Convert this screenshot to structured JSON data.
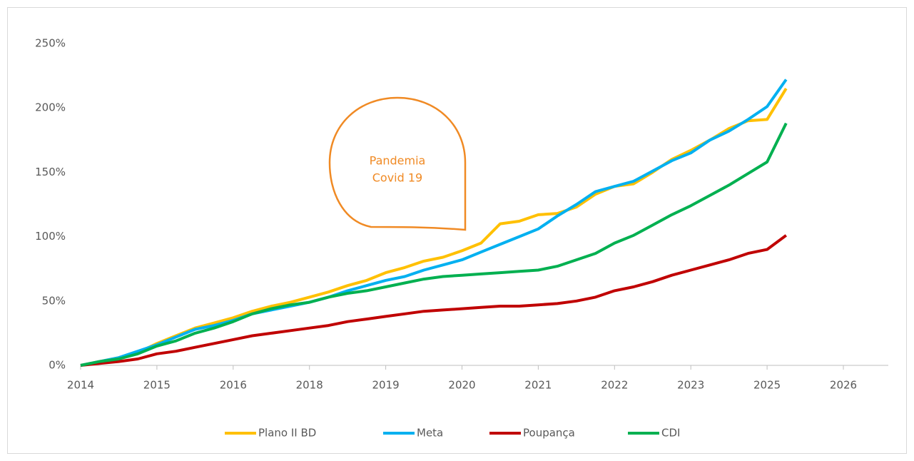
{
  "chart_data": {
    "type": "line",
    "categories": [
      "2014",
      null,
      null,
      null,
      "2015",
      null,
      null,
      null,
      "2016",
      null,
      null,
      null,
      "2018",
      null,
      null,
      null,
      "2019",
      null,
      null,
      null,
      "2020",
      null,
      null,
      null,
      "2021",
      null,
      null,
      null,
      "2022",
      null,
      null,
      null,
      "2023",
      null,
      null,
      null,
      "2025",
      null,
      null,
      null,
      "2026"
    ],
    "series": [
      {
        "name": "Plano II BD",
        "color": "#ffc000",
        "values": [
          0,
          3,
          6,
          10,
          17,
          23,
          29,
          33,
          37,
          42,
          46,
          49,
          53,
          57,
          62,
          66,
          72,
          76,
          81,
          84,
          89,
          95,
          110,
          112,
          117,
          118,
          123,
          133,
          139,
          141,
          150,
          160,
          167,
          175,
          184,
          190,
          191,
          215,
          null,
          null,
          null
        ]
      },
      {
        "name": "Meta",
        "color": "#00b0f0",
        "values": [
          0,
          3,
          6,
          11,
          16,
          22,
          28,
          31,
          35,
          40,
          43,
          46,
          49,
          53,
          58,
          62,
          66,
          69,
          74,
          78,
          82,
          88,
          94,
          100,
          106,
          116,
          125,
          135,
          139,
          143,
          151,
          159,
          165,
          175,
          182,
          191,
          201,
          222,
          null,
          null,
          null
        ]
      },
      {
        "name": "Poupança",
        "color": "#c00000",
        "values": [
          0,
          1.5,
          3,
          5,
          9,
          11,
          14,
          17,
          20,
          23,
          25,
          27,
          29,
          31,
          34,
          36,
          38,
          40,
          42,
          43,
          44,
          45,
          46,
          46,
          47,
          48,
          50,
          53,
          58,
          61,
          65,
          70,
          74,
          78,
          82,
          87,
          90,
          101,
          null,
          null,
          null
        ]
      },
      {
        "name": "CDI",
        "color": "#00b050",
        "values": [
          0,
          3,
          5,
          9,
          15,
          19,
          25,
          29,
          34,
          40,
          44,
          47,
          49,
          53,
          56,
          58,
          61,
          64,
          67,
          69,
          70,
          71,
          72,
          73,
          74,
          77,
          82,
          87,
          95,
          101,
          109,
          117,
          124,
          132,
          140,
          149,
          158,
          188,
          null,
          null,
          null
        ]
      }
    ],
    "ylim": [
      0,
      250
    ],
    "yticks": [
      {
        "value": 0,
        "label": "0%"
      },
      {
        "value": 50,
        "label": "50%"
      },
      {
        "value": 100,
        "label": "100%"
      },
      {
        "value": 150,
        "label": "150%"
      },
      {
        "value": 200,
        "label": "200%"
      },
      {
        "value": 250,
        "label": "250%"
      }
    ],
    "annotation": [
      "Pandemia",
      "Covid 19"
    ],
    "legend": "bottom"
  }
}
